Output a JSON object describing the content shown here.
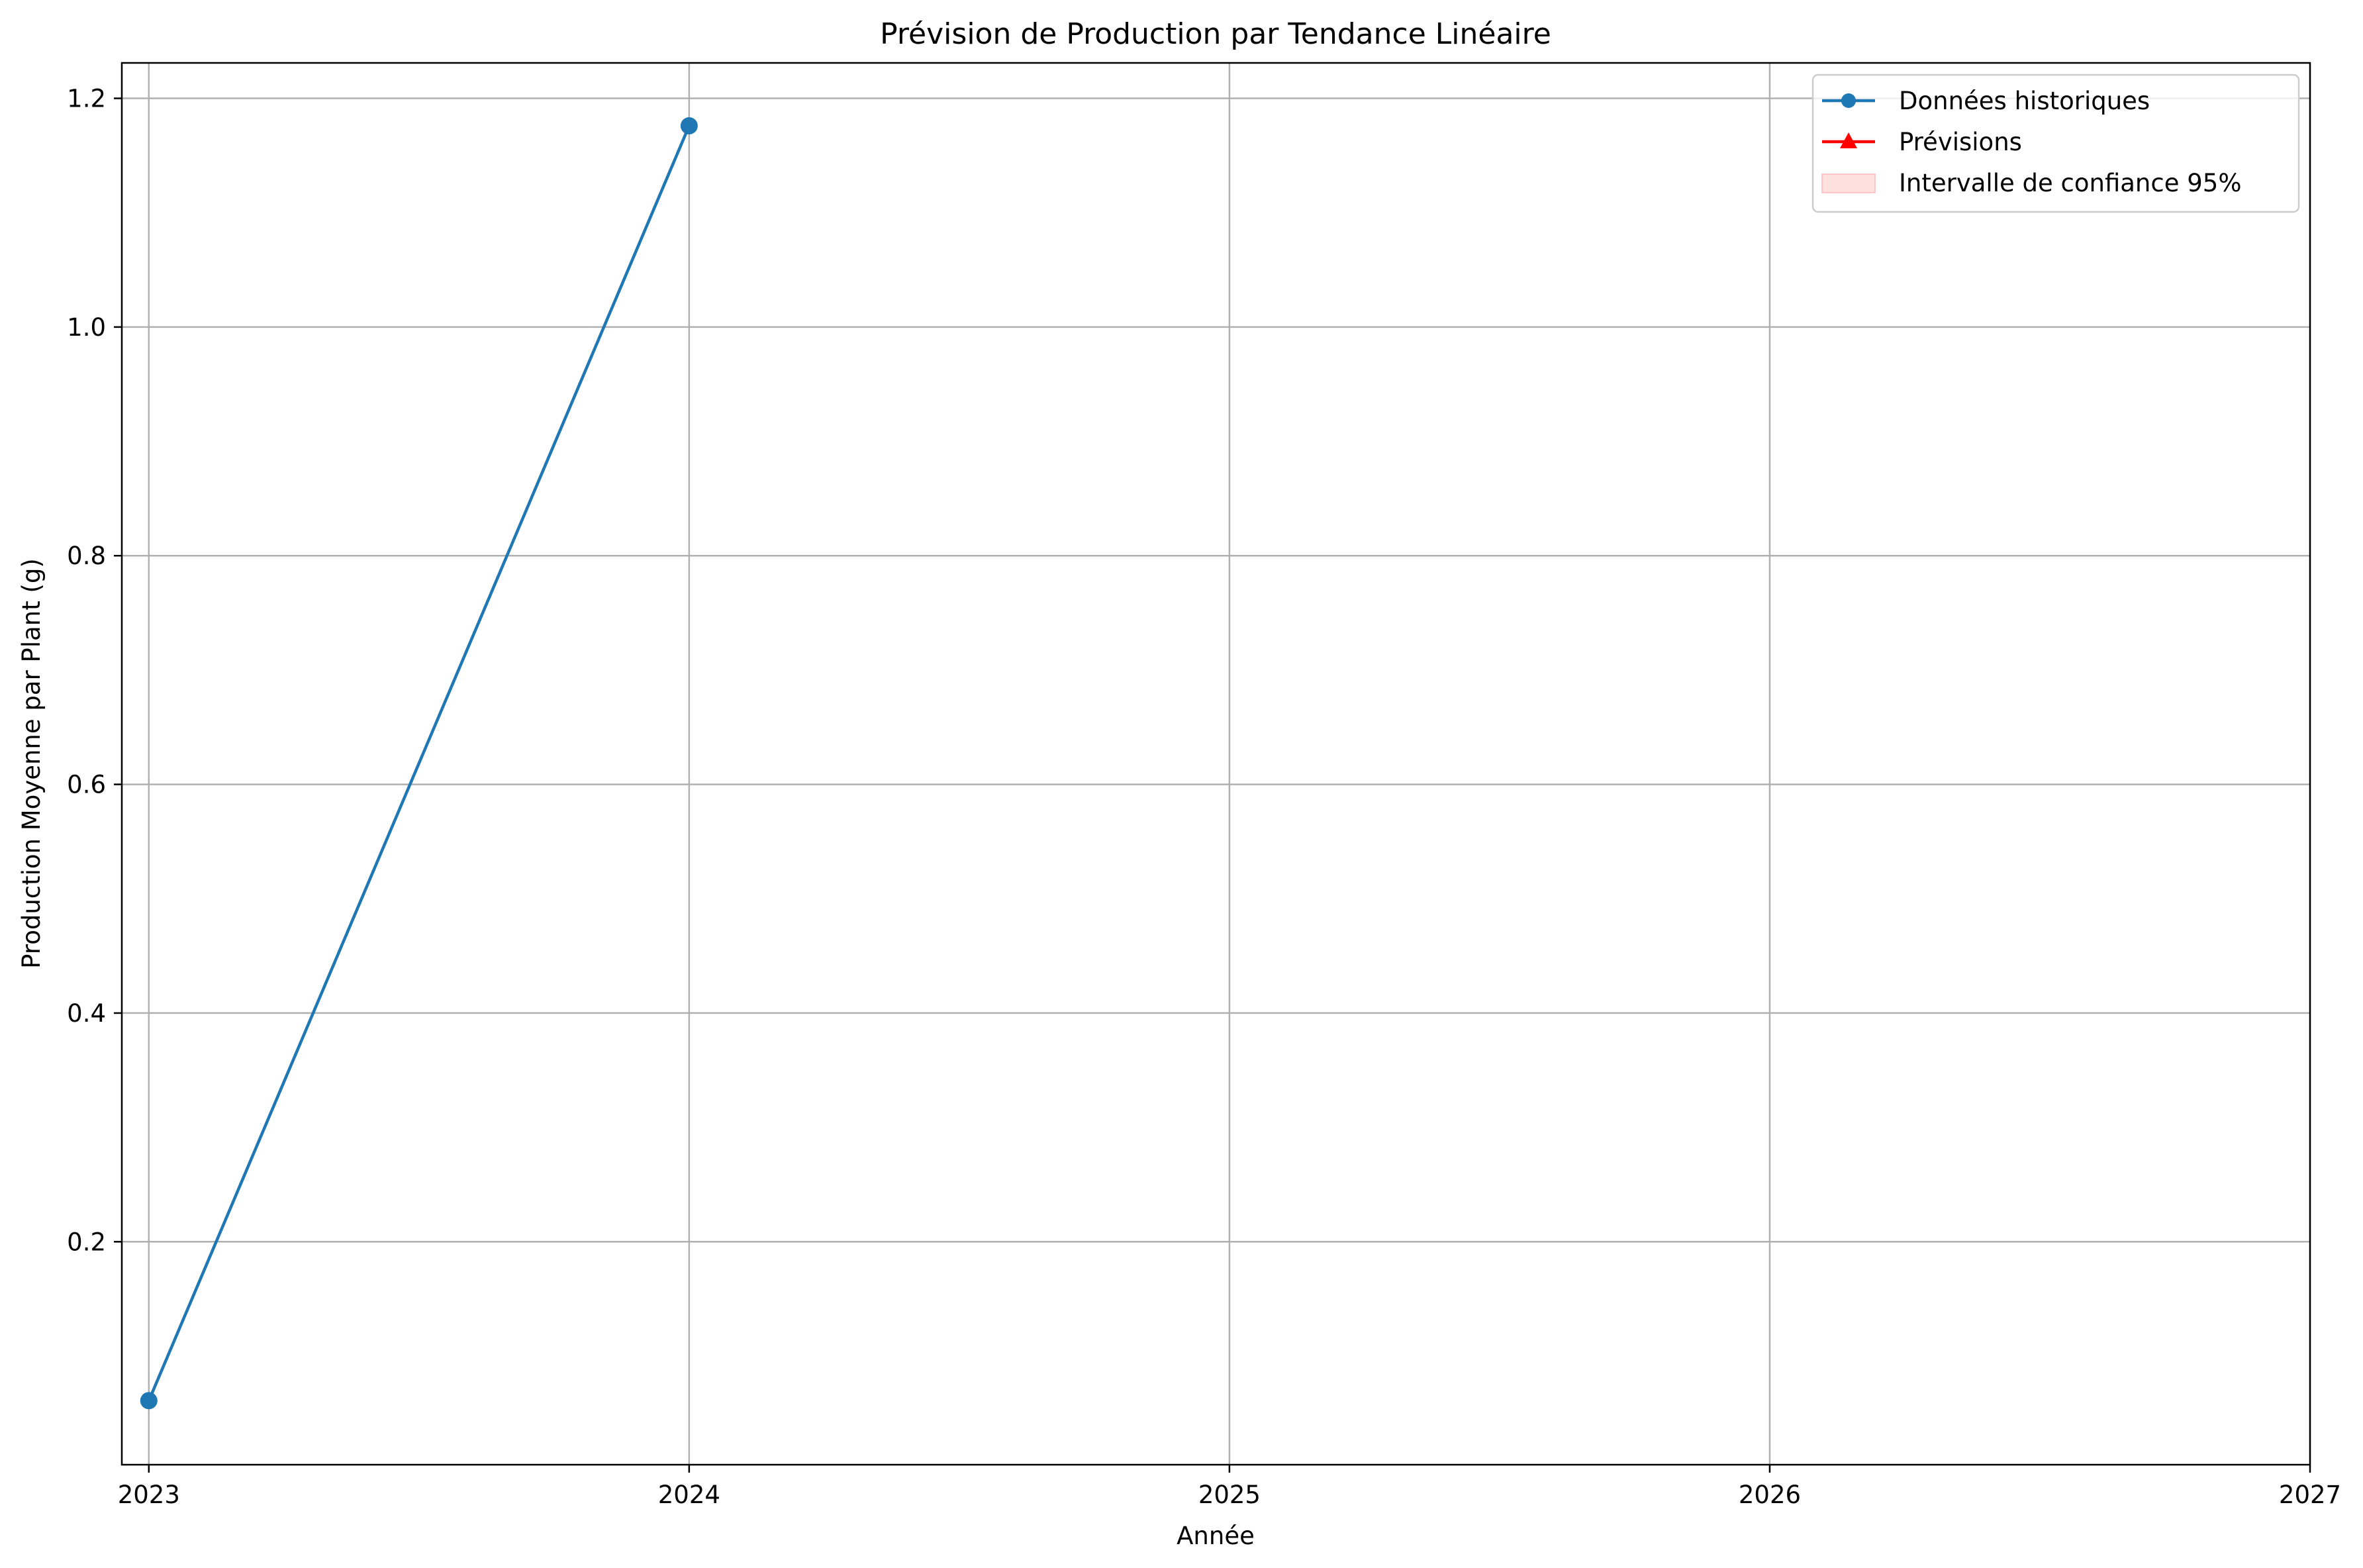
{
  "chart_data": {
    "type": "line",
    "title": "Prévision de Production par Tendance Linéaire",
    "xlabel": "Année",
    "ylabel": "Production Moyenne par Plant (g)",
    "xlim": [
      2022.95,
      2027.0
    ],
    "ylim": [
      0.005,
      1.231
    ],
    "x_ticks": [
      2023,
      2024,
      2025,
      2026,
      2027
    ],
    "x_tick_labels": [
      "2023",
      "2024",
      "2025",
      "2026",
      "2027"
    ],
    "y_ticks": [
      0.2,
      0.4,
      0.6,
      0.8,
      1.0,
      1.2
    ],
    "y_tick_labels": [
      "0.2",
      "0.4",
      "0.6",
      "0.8",
      "1.0",
      "1.2"
    ],
    "grid": true,
    "legend_position": "top-right",
    "series": [
      {
        "name": "Données historiques",
        "kind": "line-marker-circle",
        "color": "#1f77b4",
        "x": [
          2023,
          2024
        ],
        "y": [
          0.061,
          1.176
        ]
      },
      {
        "name": "Prévisions",
        "kind": "line-marker-triangle",
        "color": "#ff0000",
        "x": [],
        "y": []
      },
      {
        "name": "Intervalle de confiance 95%",
        "kind": "band",
        "color": "#ffcccc",
        "x": [],
        "lower": [],
        "upper": []
      }
    ]
  }
}
